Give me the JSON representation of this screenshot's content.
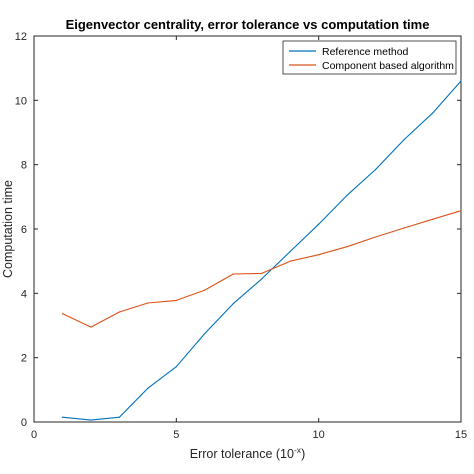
{
  "chart_data": {
    "type": "line",
    "title": "Eigenvector centrality, error tolerance vs computation time",
    "xlabel_base": "Error tolerance (10",
    "xlabel_exp": "-x",
    "xlabel_close": ")",
    "ylabel": "Computation time",
    "xlim": [
      0,
      15
    ],
    "ylim": [
      0,
      12
    ],
    "xticks": [
      0,
      5,
      10,
      15
    ],
    "yticks": [
      0,
      2,
      4,
      6,
      8,
      10,
      12
    ],
    "grid": false,
    "legend_position": "top-right",
    "series": [
      {
        "name": "Reference method",
        "color": "#0072BD",
        "x": [
          1,
          2,
          3,
          4,
          5,
          6,
          7,
          8,
          9,
          10,
          11,
          12,
          13,
          14,
          15
        ],
        "y": [
          0.15,
          0.06,
          0.15,
          1.05,
          1.72,
          2.75,
          3.68,
          4.45,
          5.3,
          6.15,
          7.05,
          7.85,
          8.78,
          9.6,
          10.6
        ]
      },
      {
        "name": "Component based algorithm",
        "color": "#D95319",
        "x": [
          1,
          2,
          3,
          4,
          5,
          6,
          7,
          8,
          9,
          10,
          11,
          12,
          13,
          14,
          15
        ],
        "y": [
          3.37,
          2.95,
          3.42,
          3.7,
          3.78,
          4.1,
          4.6,
          4.62,
          5.0,
          5.2,
          5.45,
          5.75,
          6.03,
          6.3,
          6.57
        ]
      }
    ]
  }
}
